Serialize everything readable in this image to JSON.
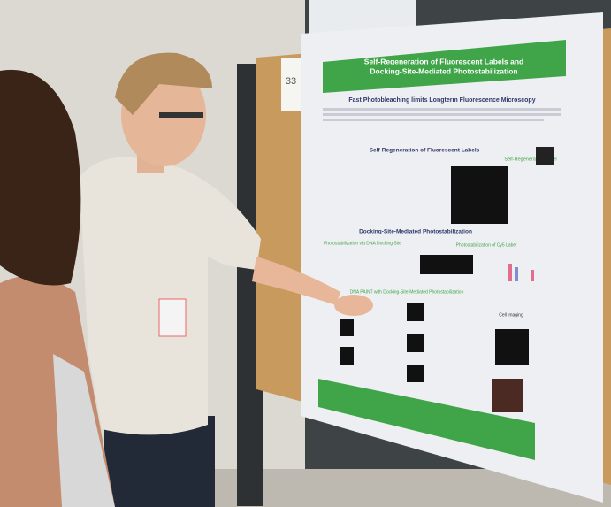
{
  "board_number": "33",
  "poster": {
    "title": [
      "Self-Regeneration of Fluorescent Labels and",
      "Docking-Site-Mediated Photostabilization"
    ],
    "subtitle": "Fast Photobleaching limits Longterm Fluorescence Microscopy",
    "sections": [
      "Self-Regeneration of Fluorescent Labels",
      "Self-Regenerating Label",
      "Docking-Site-Mediated Photostabilization",
      "Photostabilization via DNA Docking Site",
      "Photostabilization of Cy5 Label",
      "DNA PAINT with Docking-Site-Mediated Photostabilization",
      "Cell imaging"
    ]
  }
}
